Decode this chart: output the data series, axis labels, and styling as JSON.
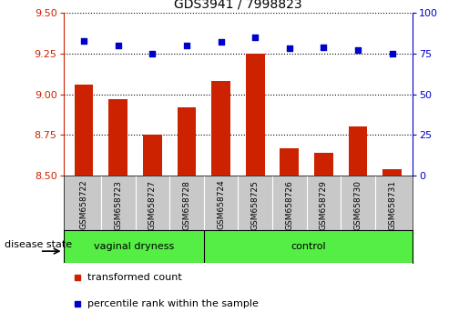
{
  "title": "GDS3941 / 7998823",
  "samples": [
    "GSM658722",
    "GSM658723",
    "GSM658727",
    "GSM658728",
    "GSM658724",
    "GSM658725",
    "GSM658726",
    "GSM658729",
    "GSM658730",
    "GSM658731"
  ],
  "bar_values": [
    9.06,
    8.97,
    8.75,
    8.92,
    9.08,
    9.25,
    8.67,
    8.64,
    8.8,
    8.54
  ],
  "dot_values": [
    83,
    80,
    75,
    80,
    82,
    85,
    78,
    79,
    77,
    75
  ],
  "ylim_left": [
    8.5,
    9.5
  ],
  "ylim_right": [
    0,
    100
  ],
  "yticks_left": [
    8.5,
    8.75,
    9.0,
    9.25,
    9.5
  ],
  "yticks_right": [
    0,
    25,
    50,
    75,
    100
  ],
  "groups": [
    {
      "label": "vaginal dryness",
      "start": 0,
      "end": 4
    },
    {
      "label": "control",
      "start": 4,
      "end": 10
    }
  ],
  "bar_color": "#cc2200",
  "dot_color": "#0000cc",
  "bar_bottom": 8.5,
  "right_axis_color": "#0000cc",
  "left_axis_color": "#cc2200",
  "grid_color": "#000000",
  "bg_color": "#ffffff",
  "label_area_color": "#c8c8c8",
  "group_color": "#55ee44",
  "legend_bar_label": "transformed count",
  "legend_dot_label": "percentile rank within the sample",
  "disease_state_label": "disease state"
}
